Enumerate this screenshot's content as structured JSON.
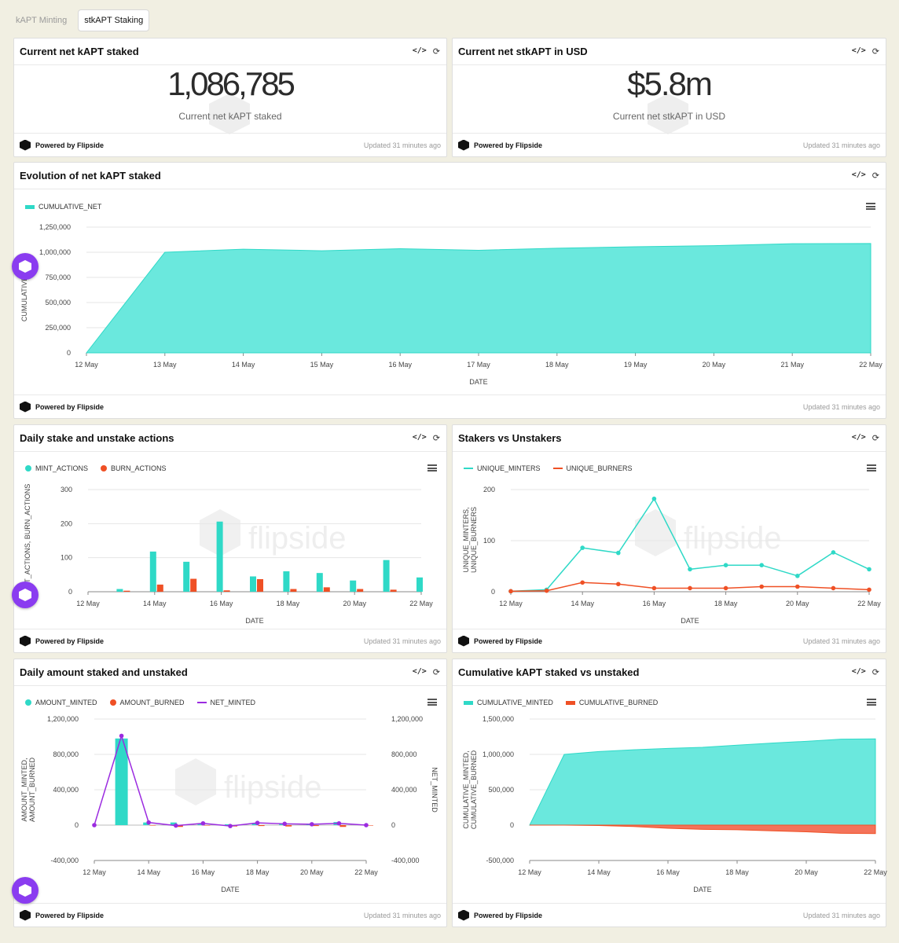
{
  "tabs": [
    {
      "label": "kAPT Minting",
      "active": false
    },
    {
      "label": "stkAPT Staking",
      "active": true
    }
  ],
  "footer": {
    "powered": "Powered by Flipside",
    "updated": "Updated 31 minutes ago"
  },
  "icons": {
    "embed": "code-icon",
    "refresh": "refresh-icon",
    "menu": "menu-icon",
    "brand": "flipside-logo-icon"
  },
  "colors": {
    "teal": "#2fd9c7",
    "teal_fill": "#6ae8dd",
    "orange": "#ef5025",
    "purple": "#9b2be0",
    "fab": "#8a3cf0"
  },
  "panels": {
    "net_kapt": {
      "title": "Current net kAPT staked",
      "value": "1,086,785",
      "subtitle": "Current net kAPT staked"
    },
    "net_usd": {
      "title": "Current net stkAPT in USD",
      "value": "$5.8m",
      "subtitle": "Current net stkAPT in USD"
    },
    "evolution": {
      "title": "Evolution of net kAPT staked"
    },
    "daily_actions": {
      "title": "Daily stake and unstake actions"
    },
    "stakers": {
      "title": "Stakers vs Unstakers"
    },
    "daily_amount": {
      "title": "Daily amount staked and unstaked"
    },
    "cumulative": {
      "title": "Cumulative kAPT staked vs unstaked"
    }
  },
  "watermark": "flipside",
  "chart_data": [
    {
      "id": "evolution",
      "type": "area",
      "legend": [
        "CUMULATIVE_NET"
      ],
      "xlabel": "DATE",
      "ylabel": "CUMULATIVE_NET",
      "x": [
        "12 May",
        "13 May",
        "14 May",
        "15 May",
        "16 May",
        "17 May",
        "18 May",
        "19 May",
        "20 May",
        "21 May",
        "22 May"
      ],
      "yticks": [
        "0",
        "250,000",
        "500,000",
        "750,000",
        "1,000,000",
        "1,250,000"
      ],
      "ylim": [
        0,
        1250000
      ],
      "series": [
        {
          "name": "CUMULATIVE_NET",
          "values": [
            0,
            1000000,
            1030000,
            1015000,
            1035000,
            1020000,
            1040000,
            1055000,
            1065000,
            1085000,
            1086785
          ]
        }
      ]
    },
    {
      "id": "daily_actions",
      "type": "bar",
      "legend": [
        "MINT_ACTIONS",
        "BURN_ACTIONS"
      ],
      "xlabel": "DATE",
      "ylabel": "MINT_ACTIONS, BURN_ACTIONS",
      "x": [
        "12 May",
        "13 May",
        "14 May",
        "15 May",
        "16 May",
        "17 May",
        "18 May",
        "19 May",
        "20 May",
        "21 May",
        "22 May"
      ],
      "xticks": [
        "12 May",
        "14 May",
        "16 May",
        "18 May",
        "20 May",
        "22 May"
      ],
      "yticks": [
        "0",
        "100",
        "200",
        "300"
      ],
      "ylim": [
        0,
        300
      ],
      "series": [
        {
          "name": "MINT_ACTIONS",
          "values": [
            0,
            8,
            118,
            88,
            206,
            45,
            60,
            55,
            33,
            93,
            42
          ]
        },
        {
          "name": "BURN_ACTIONS",
          "values": [
            0,
            3,
            21,
            38,
            4,
            37,
            8,
            13,
            8,
            6,
            0
          ]
        }
      ]
    },
    {
      "id": "stakers",
      "type": "line",
      "legend": [
        "UNIQUE_MINTERS",
        "UNIQUE_BURNERS"
      ],
      "xlabel": "DATE",
      "ylabel": "UNIQUE_MINTERS, UNIQUE_BURNERS",
      "x": [
        "12 May",
        "13 May",
        "14 May",
        "15 May",
        "16 May",
        "17 May",
        "18 May",
        "19 May",
        "20 May",
        "21 May",
        "22 May"
      ],
      "xticks": [
        "12 May",
        "14 May",
        "16 May",
        "18 May",
        "20 May",
        "22 May"
      ],
      "yticks": [
        "0",
        "100",
        "200"
      ],
      "ylim": [
        0,
        200
      ],
      "series": [
        {
          "name": "UNIQUE_MINTERS",
          "values": [
            1,
            4,
            86,
            76,
            182,
            44,
            52,
            52,
            31,
            77,
            44
          ]
        },
        {
          "name": "UNIQUE_BURNERS",
          "values": [
            1,
            2,
            18,
            15,
            7,
            7,
            7,
            10,
            10,
            7,
            4
          ]
        }
      ]
    },
    {
      "id": "daily_amount",
      "type": "bar",
      "legend": [
        "AMOUNT_MINTED",
        "AMOUNT_BURNED",
        "NET_MINTED"
      ],
      "xlabel": "DATE",
      "ylabel": "AMOUNT_MINTED, AMOUNT_BURNED",
      "y2label": "NET_MINTED",
      "x": [
        "12 May",
        "13 May",
        "14 May",
        "15 May",
        "16 May",
        "17 May",
        "18 May",
        "19 May",
        "20 May",
        "21 May",
        "22 May"
      ],
      "xticks": [
        "12 May",
        "14 May",
        "16 May",
        "18 May",
        "20 May",
        "22 May"
      ],
      "yticks": [
        "-400,000",
        "0",
        "400,000",
        "800,000",
        "1,200,000"
      ],
      "ylim": [
        -400000,
        1200000
      ],
      "series": [
        {
          "name": "AMOUNT_MINTED",
          "values": [
            0,
            980000,
            30000,
            30000,
            15000,
            10000,
            25000,
            20000,
            15000,
            35000,
            5000
          ]
        },
        {
          "name": "AMOUNT_BURNED",
          "values": [
            0,
            0,
            -5000,
            -20000,
            -5000,
            -15000,
            -10000,
            -15000,
            -10000,
            -20000,
            -5000
          ]
        },
        {
          "name": "NET_MINTED",
          "values": [
            0,
            1010000,
            30000,
            -5000,
            20000,
            -10000,
            25000,
            15000,
            10000,
            20000,
            0
          ]
        }
      ]
    },
    {
      "id": "cumulative",
      "type": "area",
      "legend": [
        "CUMULATIVE_MINTED",
        "CUMULATIVE_BURNED"
      ],
      "xlabel": "DATE",
      "ylabel": "CUMULATIVE_MINTED, CUMULATIVE_BURNED",
      "x": [
        "12 May",
        "13 May",
        "14 May",
        "15 May",
        "16 May",
        "17 May",
        "18 May",
        "19 May",
        "20 May",
        "21 May",
        "22 May"
      ],
      "xticks": [
        "12 May",
        "14 May",
        "16 May",
        "18 May",
        "20 May",
        "22 May"
      ],
      "yticks": [
        "-500,000",
        "0",
        "500,000",
        "1,000,000",
        "1,500,000"
      ],
      "ylim": [
        -500000,
        1500000
      ],
      "series": [
        {
          "name": "CUMULATIVE_MINTED",
          "values": [
            0,
            1000000,
            1040000,
            1065000,
            1085000,
            1100000,
            1130000,
            1160000,
            1185000,
            1215000,
            1220000
          ]
        },
        {
          "name": "CUMULATIVE_BURNED",
          "values": [
            0,
            0,
            -5000,
            -20000,
            -45000,
            -60000,
            -65000,
            -80000,
            -95000,
            -115000,
            -120000
          ]
        }
      ]
    }
  ]
}
